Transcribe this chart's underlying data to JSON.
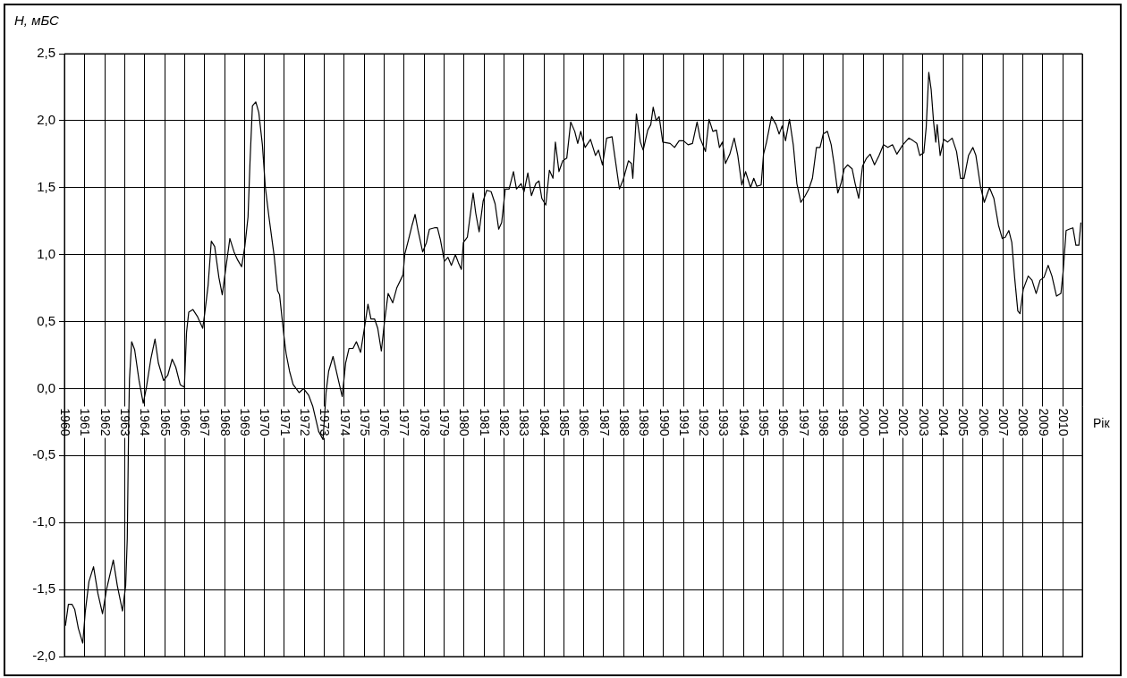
{
  "chart_data": {
    "type": "line",
    "ylabel": "H, мБС",
    "xlabel": "Рік",
    "grid": true,
    "legend": false,
    "marker": "none",
    "line_style": "solid",
    "xlim": [
      1960,
      2011
    ],
    "xticks": [
      1960,
      1961,
      1962,
      1963,
      1964,
      1965,
      1966,
      1967,
      1968,
      1969,
      1970,
      1971,
      1972,
      1973,
      1974,
      1975,
      1976,
      1977,
      1978,
      1979,
      1980,
      1981,
      1982,
      1983,
      1984,
      1985,
      1986,
      1987,
      1988,
      1989,
      1990,
      1991,
      1992,
      1993,
      1994,
      1995,
      1996,
      1997,
      1998,
      1999,
      2000,
      2001,
      2002,
      2003,
      2004,
      2005,
      2006,
      2007,
      2008,
      2009,
      2010,
      {
        "value": 2011,
        "label": null
      }
    ],
    "ylim": [
      -2.0,
      2.5
    ],
    "yticks": [
      {
        "value": -2.0,
        "label": "-2,0"
      },
      {
        "value": -1.5,
        "label": "-1,5"
      },
      {
        "value": -1.0,
        "label": "-1,0"
      },
      {
        "value": -0.5,
        "label": "-0,5"
      },
      {
        "value": 0,
        "label": "0,0"
      },
      {
        "value": 0.5,
        "label": "0,5"
      },
      {
        "value": 1.0,
        "label": "1,0"
      },
      {
        "value": 1.5,
        "label": "1,5"
      },
      {
        "value": 2.0,
        "label": "2,0"
      },
      {
        "value": 2.5,
        "label": "2,5"
      }
    ],
    "series": [
      {
        "color": "#000000",
        "x": [
          1960.05,
          1960.2,
          1960.38,
          1960.52,
          1960.7,
          1960.92,
          1961.05,
          1961.23,
          1961.46,
          1961.68,
          1961.91,
          1962.11,
          1962.45,
          1962.65,
          1962.91,
          1963.07,
          1963.15,
          1963.22,
          1963.26,
          1963.37,
          1963.52,
          1963.74,
          1963.95,
          1964.1,
          1964.33,
          1964.54,
          1964.71,
          1964.97,
          1965.18,
          1965.4,
          1965.58,
          1965.8,
          1966.01,
          1966.12,
          1966.23,
          1966.44,
          1966.66,
          1966.93,
          1967.03,
          1967.2,
          1967.36,
          1967.53,
          1967.74,
          1967.91,
          1968.08,
          1968.29,
          1968.5,
          1968.68,
          1968.88,
          1969.04,
          1969.2,
          1969.3,
          1969.42,
          1969.59,
          1969.74,
          1969.92,
          1970.07,
          1970.25,
          1970.51,
          1970.68,
          1970.78,
          1971.01,
          1971.11,
          1971.28,
          1971.46,
          1971.76,
          1971.98,
          1972.24,
          1972.44,
          1972.74,
          1972.96,
          1973.11,
          1973.24,
          1973.46,
          1973.67,
          1973.92,
          1974.09,
          1974.26,
          1974.46,
          1974.63,
          1974.84,
          1975.03,
          1975.21,
          1975.36,
          1975.54,
          1975.7,
          1975.88,
          1976.04,
          1976.22,
          1976.45,
          1976.65,
          1976.97,
          1977.05,
          1977.24,
          1977.42,
          1977.57,
          1977.72,
          1977.95,
          1978.14,
          1978.29,
          1978.54,
          1978.69,
          1978.84,
          1979.04,
          1979.22,
          1979.39,
          1979.59,
          1979.74,
          1979.89,
          1979.99,
          1980.19,
          1980.48,
          1980.61,
          1980.78,
          1980.98,
          1981.16,
          1981.38,
          1981.58,
          1981.76,
          1981.91,
          1982.09,
          1982.28,
          1982.5,
          1982.65,
          1982.88,
          1983.03,
          1983.22,
          1983.4,
          1983.62,
          1983.78,
          1983.92,
          1984.12,
          1984.3,
          1984.48,
          1984.6,
          1984.78,
          1984.97,
          1985.17,
          1985.37,
          1985.57,
          1985.72,
          1985.87,
          1986.09,
          1986.36,
          1986.61,
          1986.76,
          1986.96,
          1987.17,
          1987.44,
          1987.61,
          1987.81,
          1988.0,
          1988.26,
          1988.41,
          1988.48,
          1988.66,
          1988.86,
          1989.0,
          1989.23,
          1989.38,
          1989.5,
          1989.65,
          1989.8,
          1989.98,
          1990.35,
          1990.57,
          1990.8,
          1991.02,
          1991.25,
          1991.47,
          1991.7,
          1991.85,
          1992.12,
          1992.3,
          1992.49,
          1992.67,
          1992.82,
          1992.97,
          1993.12,
          1993.34,
          1993.56,
          1993.74,
          1993.94,
          1994.13,
          1994.38,
          1994.54,
          1994.69,
          1994.91,
          1995.03,
          1995.18,
          1995.43,
          1995.66,
          1995.81,
          1995.96,
          1996.13,
          1996.33,
          1996.52,
          1996.7,
          1996.9,
          1997.12,
          1997.3,
          1997.48,
          1997.68,
          1997.86,
          1998.02,
          1998.23,
          1998.42,
          1998.57,
          1998.75,
          1998.91,
          1999.07,
          1999.24,
          1999.47,
          1999.62,
          1999.8,
          1999.99,
          2000.19,
          2000.37,
          2000.59,
          2000.82,
          2001.04,
          2001.26,
          2001.49,
          2001.71,
          2002.01,
          2002.31,
          2002.53,
          2002.71,
          2002.86,
          2003.06,
          2003.18,
          2003.31,
          2003.43,
          2003.55,
          2003.66,
          2003.73,
          2003.88,
          2004.06,
          2004.25,
          2004.48,
          2004.7,
          2004.9,
          2005.08,
          2005.3,
          2005.52,
          2005.67,
          2005.9,
          2006.09,
          2006.35,
          2006.57,
          2006.8,
          2006.99,
          2007.14,
          2007.32,
          2007.47,
          2007.61,
          2007.77,
          2007.88,
          2008.04,
          2008.29,
          2008.48,
          2008.69,
          2008.89,
          2009.08,
          2009.29,
          2009.48,
          2009.71,
          2009.93,
          2010.04,
          2010.19,
          2010.34,
          2010.53,
          2010.68,
          2010.83,
          2010.93
        ],
        "values": [
          -1.77,
          -1.61,
          -1.61,
          -1.65,
          -1.79,
          -1.9,
          -1.66,
          -1.44,
          -1.33,
          -1.53,
          -1.68,
          -1.5,
          -1.28,
          -1.47,
          -1.66,
          -1.47,
          -1.12,
          -0.26,
          0.07,
          0.35,
          0.29,
          0.06,
          -0.11,
          0.0,
          0.22,
          0.37,
          0.19,
          0.06,
          0.1,
          0.22,
          0.16,
          0.03,
          0.01,
          0.42,
          0.57,
          0.59,
          0.54,
          0.45,
          0.56,
          0.77,
          1.1,
          1.06,
          0.83,
          0.7,
          0.89,
          1.12,
          1.02,
          0.96,
          0.91,
          1.06,
          1.28,
          1.69,
          2.11,
          2.14,
          2.06,
          1.82,
          1.5,
          1.28,
          0.99,
          0.73,
          0.7,
          0.38,
          0.26,
          0.13,
          0.03,
          -0.03,
          0.0,
          -0.05,
          -0.13,
          -0.32,
          -0.38,
          -0.03,
          0.13,
          0.24,
          0.1,
          -0.06,
          0.19,
          0.3,
          0.3,
          0.35,
          0.27,
          0.45,
          0.63,
          0.52,
          0.52,
          0.45,
          0.28,
          0.5,
          0.71,
          0.64,
          0.75,
          0.85,
          1.0,
          1.11,
          1.22,
          1.3,
          1.18,
          1.02,
          1.09,
          1.19,
          1.2,
          1.2,
          1.11,
          0.95,
          0.98,
          0.92,
          1.0,
          0.94,
          0.89,
          1.09,
          1.13,
          1.46,
          1.31,
          1.17,
          1.4,
          1.48,
          1.47,
          1.38,
          1.19,
          1.24,
          1.49,
          1.49,
          1.62,
          1.49,
          1.53,
          1.47,
          1.61,
          1.44,
          1.53,
          1.55,
          1.42,
          1.37,
          1.63,
          1.57,
          1.84,
          1.62,
          1.7,
          1.72,
          1.99,
          1.92,
          1.83,
          1.92,
          1.8,
          1.86,
          1.74,
          1.78,
          1.67,
          1.87,
          1.88,
          1.7,
          1.49,
          1.56,
          1.7,
          1.68,
          1.57,
          2.05,
          1.84,
          1.78,
          1.93,
          1.97,
          2.1,
          2.0,
          2.03,
          1.84,
          1.83,
          1.8,
          1.85,
          1.85,
          1.82,
          1.83,
          1.99,
          1.87,
          1.77,
          2.01,
          1.92,
          1.93,
          1.8,
          1.84,
          1.68,
          1.75,
          1.87,
          1.74,
          1.52,
          1.62,
          1.5,
          1.57,
          1.51,
          1.52,
          1.75,
          1.84,
          2.03,
          1.97,
          1.9,
          1.96,
          1.85,
          2.01,
          1.82,
          1.53,
          1.39,
          1.44,
          1.49,
          1.57,
          1.8,
          1.8,
          1.9,
          1.92,
          1.82,
          1.67,
          1.46,
          1.53,
          1.64,
          1.67,
          1.64,
          1.53,
          1.42,
          1.66,
          1.72,
          1.75,
          1.67,
          1.74,
          1.82,
          1.8,
          1.82,
          1.75,
          1.82,
          1.87,
          1.85,
          1.83,
          1.74,
          1.76,
          1.95,
          2.36,
          2.23,
          1.99,
          1.84,
          1.97,
          1.74,
          1.86,
          1.84,
          1.87,
          1.77,
          1.57,
          1.57,
          1.74,
          1.8,
          1.74,
          1.51,
          1.39,
          1.5,
          1.42,
          1.22,
          1.12,
          1.13,
          1.18,
          1.09,
          0.83,
          0.58,
          0.56,
          0.74,
          0.84,
          0.81,
          0.71,
          0.81,
          0.83,
          0.92,
          0.84,
          0.69,
          0.71,
          0.87,
          1.18,
          1.19,
          1.2,
          1.07,
          1.07,
          1.24
        ]
      }
    ]
  }
}
